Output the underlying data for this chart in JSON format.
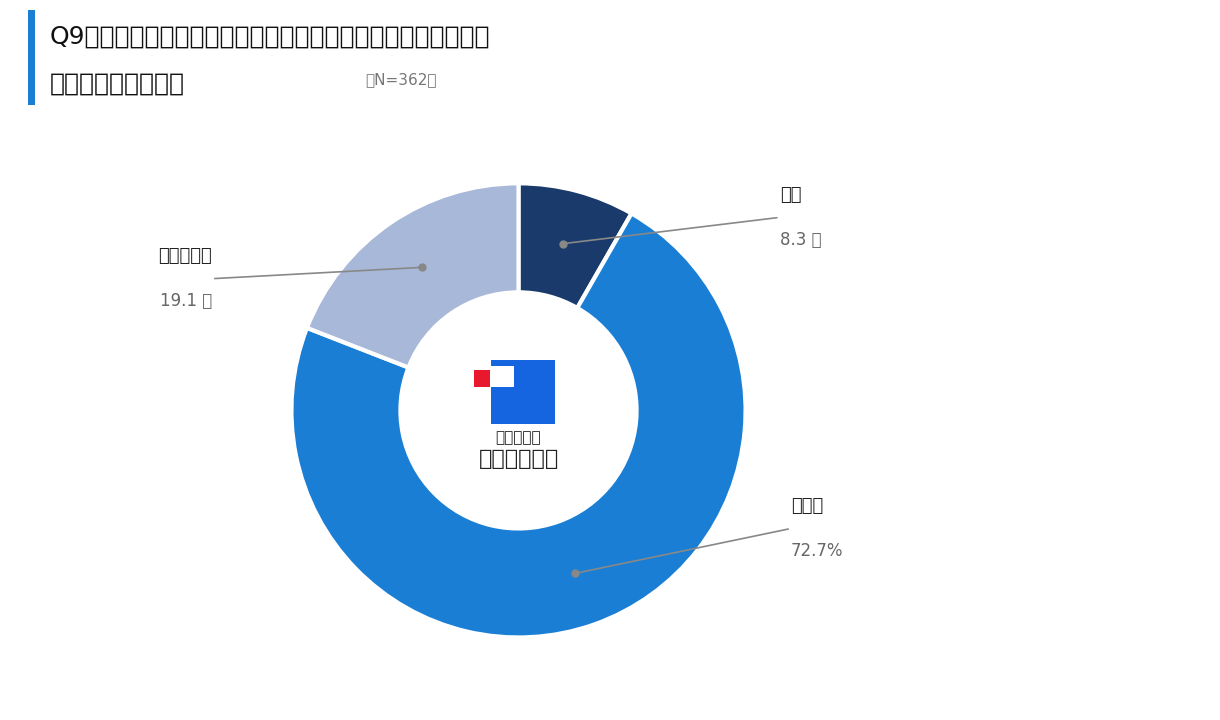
{
  "title_line1": "Q9．熱中症に備えられる保険（熱中症保険・医療保険など）に",
  "title_line2": "加入していますか？",
  "sample_size": "（N=362）",
  "slices": [
    {
      "label": "はい",
      "value": 8.3,
      "color": "#1a3a6b"
    },
    {
      "label": "いいえ",
      "value": 72.7,
      "color": "#1a7fd4"
    },
    {
      "label": "わからない",
      "value": 19.1,
      "color": "#a8b8d8"
    }
  ],
  "center_text_small": "わたしに、",
  "center_text_large": "コのほけん！",
  "logo_blue": "#1565e0",
  "logo_red": "#e8192c",
  "background_color": "#ffffff",
  "annotation_color": "#888888",
  "label_color": "#222222",
  "percent_color": "#666666"
}
